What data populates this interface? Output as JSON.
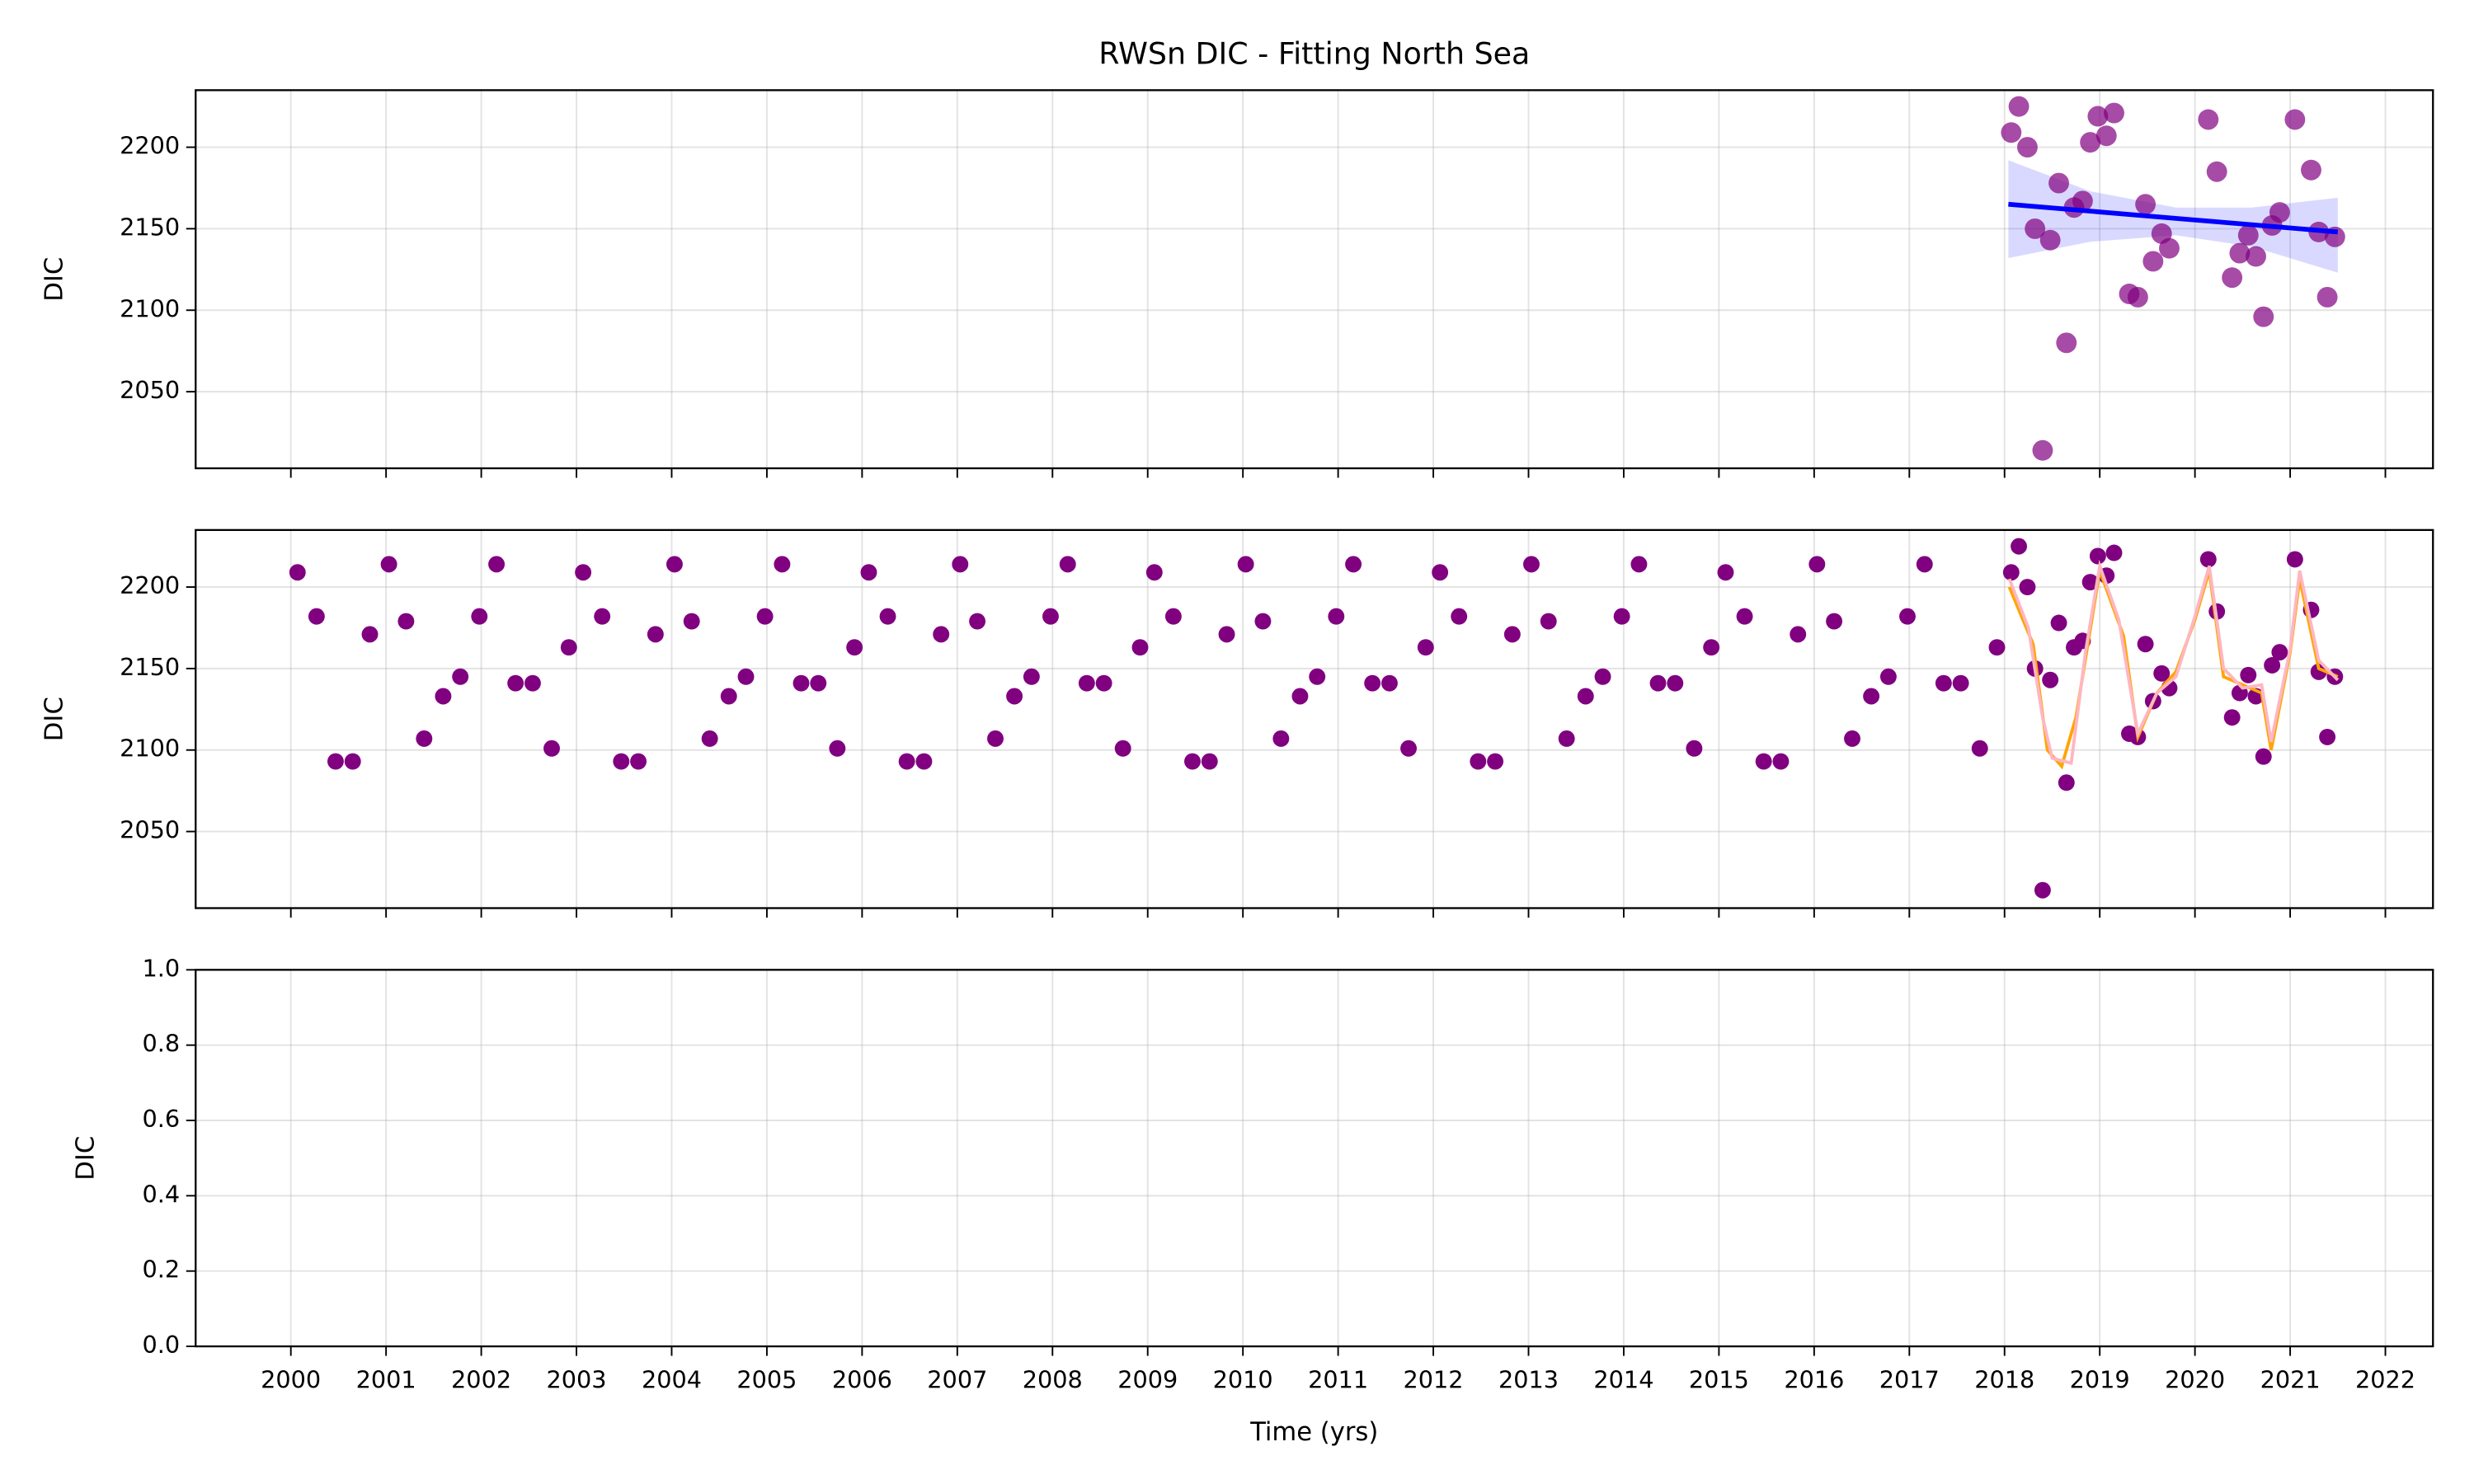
{
  "chart_data": [
    {
      "type": "scatter",
      "title": "RWSn DIC - Fitting North Sea",
      "ylabel": "DIC",
      "grid": true,
      "xlim": [
        1999.0,
        2022.5
      ],
      "ylim": [
        2003,
        2235
      ],
      "xticks": [
        2000,
        2001,
        2002,
        2003,
        2004,
        2005,
        2006,
        2007,
        2008,
        2009,
        2010,
        2011,
        2012,
        2013,
        2014,
        2015,
        2016,
        2017,
        2018,
        2019,
        2020,
        2021,
        2022
      ],
      "yticks": [
        2050,
        2100,
        2150,
        2200
      ],
      "series": [
        {
          "type": "band",
          "color": "#0000ff",
          "x": [
            2018.04,
            2018.9,
            2019.8,
            2020.6,
            2021.5
          ],
          "upper": [
            2192,
            2173,
            2163,
            2163,
            2169
          ],
          "lower": [
            2132,
            2142,
            2146,
            2139,
            2123
          ]
        },
        {
          "type": "scatter",
          "color": "#800080",
          "opacity": 0.7,
          "x": [
            2018.07,
            2018.15,
            2018.24,
            2018.32,
            2018.4,
            2018.48,
            2018.57,
            2018.65,
            2018.73,
            2018.82,
            2018.9,
            2018.98,
            2019.07,
            2019.15,
            2019.31,
            2019.4,
            2019.48,
            2019.56,
            2019.65,
            2019.73,
            2020.14,
            2020.23,
            2020.39,
            2020.47,
            2020.56,
            2020.64,
            2020.72,
            2020.81,
            2020.89,
            2021.05,
            2021.22,
            2021.3,
            2021.39,
            2021.47
          ],
          "values": [
            2209,
            2225,
            2200,
            2150,
            2014,
            2143,
            2178,
            2080,
            2163,
            2167,
            2203,
            2219,
            2207,
            2221,
            2110,
            2108,
            2165,
            2130,
            2147,
            2138,
            2217,
            2185,
            2120,
            2135,
            2146,
            2133,
            2096,
            2152,
            2160,
            2217,
            2186,
            2148,
            2108,
            2145
          ]
        },
        {
          "type": "line",
          "color": "#0000ff",
          "x": [
            2018.04,
            2021.5
          ],
          "values": [
            2165,
            2148
          ]
        }
      ]
    },
    {
      "type": "scatter",
      "ylabel": "DIC",
      "grid": true,
      "xlim": [
        1999.0,
        2022.5
      ],
      "ylim": [
        2003,
        2235
      ],
      "xticks": [
        2000,
        2001,
        2002,
        2003,
        2004,
        2005,
        2006,
        2007,
        2008,
        2009,
        2010,
        2011,
        2012,
        2013,
        2014,
        2015,
        2016,
        2017,
        2018,
        2019,
        2020,
        2021,
        2022
      ],
      "yticks": [
        2050,
        2100,
        2150,
        2200
      ],
      "series": [
        {
          "type": "scatter",
          "color": "#800080",
          "opacity": 1,
          "x": [
            2000.07,
            2000.27,
            2000.47,
            2000.65,
            2000.83,
            2001.03,
            2001.21,
            2001.4,
            2001.6,
            2001.78,
            2001.98,
            2002.16,
            2002.36,
            2002.54,
            2002.74,
            2002.92,
            2003.07,
            2003.27,
            2003.47,
            2003.65,
            2003.83,
            2004.03,
            2004.21,
            2004.4,
            2004.6,
            2004.78,
            2004.98,
            2005.16,
            2005.36,
            2005.54,
            2005.74,
            2005.92,
            2006.07,
            2006.27,
            2006.47,
            2006.65,
            2006.83,
            2007.03,
            2007.21,
            2007.4,
            2007.6,
            2007.78,
            2007.98,
            2008.16,
            2008.36,
            2008.54,
            2008.74,
            2008.92,
            2009.07,
            2009.27,
            2009.47,
            2009.65,
            2009.83,
            2010.03,
            2010.21,
            2010.4,
            2010.6,
            2010.78,
            2010.98,
            2011.16,
            2011.36,
            2011.54,
            2011.74,
            2011.92,
            2012.07,
            2012.27,
            2012.47,
            2012.65,
            2012.83,
            2013.03,
            2013.21,
            2013.4,
            2013.6,
            2013.78,
            2013.98,
            2014.16,
            2014.36,
            2014.54,
            2014.74,
            2014.92,
            2015.07,
            2015.27,
            2015.47,
            2015.65,
            2015.83,
            2016.03,
            2016.21,
            2016.4,
            2016.6,
            2016.78,
            2016.98,
            2017.16,
            2017.36,
            2017.54,
            2017.74,
            2017.92
          ],
          "values": [
            2209,
            2182,
            2093,
            2093,
            2171,
            2214,
            2179,
            2107,
            2133,
            2145,
            2182,
            2214,
            2141,
            2141,
            2101,
            2163,
            2209,
            2182,
            2093,
            2093,
            2171,
            2214,
            2179,
            2107,
            2133,
            2145,
            2182,
            2214,
            2141,
            2141,
            2101,
            2163,
            2209,
            2182,
            2093,
            2093,
            2171,
            2214,
            2179,
            2107,
            2133,
            2145,
            2182,
            2214,
            2141,
            2141,
            2101,
            2163,
            2209,
            2182,
            2093,
            2093,
            2171,
            2214,
            2179,
            2107,
            2133,
            2145,
            2182,
            2214,
            2141,
            2141,
            2101,
            2163,
            2209,
            2182,
            2093,
            2093,
            2171,
            2214,
            2179,
            2107,
            2133,
            2145,
            2182,
            2214,
            2141,
            2141,
            2101,
            2163,
            2209,
            2182,
            2093,
            2093,
            2171,
            2214,
            2179,
            2107,
            2133,
            2145,
            2182,
            2214,
            2141,
            2141,
            2101,
            2163
          ]
        },
        {
          "type": "scatter",
          "color": "#800080",
          "opacity": 1,
          "x": [
            2018.07,
            2018.15,
            2018.24,
            2018.32,
            2018.4,
            2018.48,
            2018.57,
            2018.65,
            2018.73,
            2018.82,
            2018.9,
            2018.98,
            2019.07,
            2019.15,
            2019.31,
            2019.4,
            2019.48,
            2019.56,
            2019.65,
            2019.73,
            2020.14,
            2020.23,
            2020.39,
            2020.47,
            2020.56,
            2020.64,
            2020.72,
            2020.81,
            2020.89,
            2021.05,
            2021.22,
            2021.3,
            2021.39,
            2021.47
          ],
          "values": [
            2209,
            2225,
            2200,
            2150,
            2014,
            2143,
            2178,
            2080,
            2163,
            2167,
            2203,
            2219,
            2207,
            2221,
            2110,
            2108,
            2165,
            2130,
            2147,
            2138,
            2217,
            2185,
            2120,
            2135,
            2146,
            2133,
            2096,
            2152,
            2160,
            2217,
            2186,
            2148,
            2108,
            2145
          ]
        },
        {
          "type": "line",
          "color": "#ffa500",
          "x": [
            2018.05,
            2018.3,
            2018.45,
            2018.6,
            2018.75,
            2019.0,
            2019.25,
            2019.4,
            2019.6,
            2019.8,
            2020.0,
            2020.15,
            2020.3,
            2020.5,
            2020.7,
            2020.8,
            2021.0,
            2021.1,
            2021.3,
            2021.5
          ],
          "values": [
            2200,
            2165,
            2100,
            2090,
            2120,
            2210,
            2170,
            2108,
            2135,
            2148,
            2180,
            2210,
            2145,
            2140,
            2135,
            2100,
            2160,
            2205,
            2150,
            2145
          ]
        },
        {
          "type": "line",
          "color": "#ffb6c1",
          "x": [
            2018.05,
            2018.25,
            2018.4,
            2018.5,
            2018.7,
            2018.85,
            2019.0,
            2019.2,
            2019.4,
            2019.6,
            2019.8,
            2020.0,
            2020.15,
            2020.3,
            2020.5,
            2020.7,
            2020.8,
            2021.0,
            2021.1,
            2021.3,
            2021.5
          ],
          "values": [
            2205,
            2175,
            2120,
            2095,
            2092,
            2160,
            2213,
            2180,
            2110,
            2135,
            2145,
            2182,
            2213,
            2150,
            2138,
            2140,
            2105,
            2162,
            2210,
            2155,
            2143
          ]
        }
      ]
    },
    {
      "type": "scatter",
      "ylabel": "DIC",
      "xlabel": "Time (yrs)",
      "grid": true,
      "xlim": [
        1999.0,
        2022.5
      ],
      "ylim": [
        0,
        1
      ],
      "xticks": [
        2000,
        2001,
        2002,
        2003,
        2004,
        2005,
        2006,
        2007,
        2008,
        2009,
        2010,
        2011,
        2012,
        2013,
        2014,
        2015,
        2016,
        2017,
        2018,
        2019,
        2020,
        2021,
        2022
      ],
      "yticks": [
        {
          "value": 0,
          "label": "0.0"
        },
        0.2,
        0.4,
        0.6,
        0.8,
        {
          "value": 1,
          "label": "1.0"
        }
      ],
      "series": []
    }
  ]
}
